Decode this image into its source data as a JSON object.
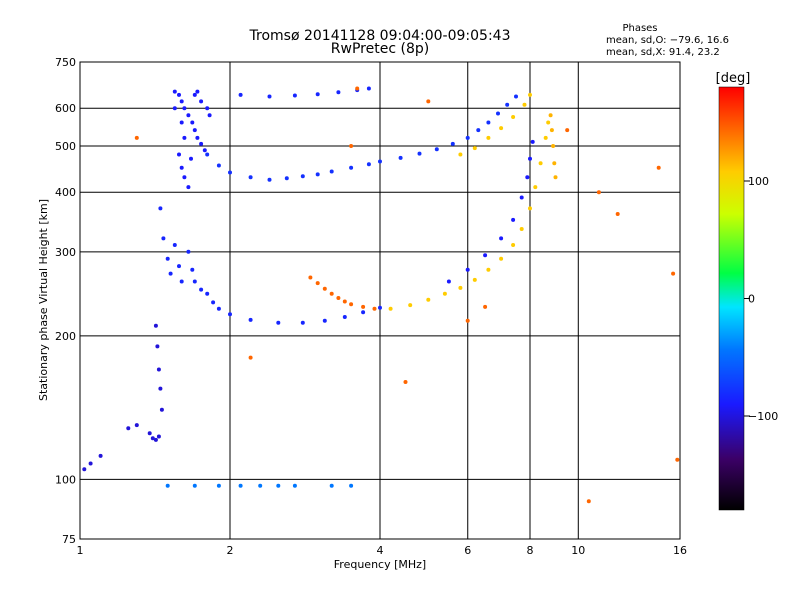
{
  "chart_data": {
    "type": "scatter",
    "title": "Tromsø 20141128 09:04:00-09:05:43",
    "subtitle": "RwPretec (8p)",
    "xlabel": "Frequency [MHz]",
    "ylabel": "Stationary phase Virtual Height [km]",
    "x_scale": "log",
    "y_scale": "log",
    "xlim": [
      1,
      16
    ],
    "ylim": [
      75,
      750
    ],
    "x_ticks": [
      1,
      2,
      4,
      6,
      8,
      10,
      16
    ],
    "x_tick_labels": [
      "1",
      "2",
      "4",
      "6",
      "8",
      "10",
      "16"
    ],
    "y_ticks": [
      75,
      100,
      200,
      300,
      400,
      500,
      600,
      750
    ],
    "y_tick_labels": [
      "75",
      "100",
      "200",
      "300",
      "400",
      "500",
      "600",
      "750"
    ],
    "grid": true,
    "phase_stats": {
      "header": "Phases",
      "o_line": "mean, sd,O: −79.6, 16.6",
      "x_line": "mean, sd,X:  91.4, 23.2"
    },
    "colorbar": {
      "label": "[deg]",
      "range": [
        -180,
        180
      ],
      "ticks": [
        100,
        0,
        -100
      ],
      "tick_labels": [
        "100",
        "0",
        "−100"
      ],
      "colors": [
        "#000000",
        "#3b0066",
        "#1a1aff",
        "#0077ff",
        "#00e5ff",
        "#00ff44",
        "#ccff00",
        "#ffcc00",
        "#ff6600",
        "#ff0000"
      ]
    },
    "series": [
      {
        "values": [
          [
            1.55,
            650
          ],
          [
            1.58,
            640
          ],
          [
            1.6,
            620
          ],
          [
            1.62,
            600
          ],
          [
            1.65,
            580
          ],
          [
            1.68,
            560
          ],
          [
            1.7,
            540
          ],
          [
            1.72,
            520
          ],
          [
            1.75,
            505
          ],
          [
            1.78,
            490
          ],
          [
            1.6,
            560
          ],
          [
            1.62,
            520
          ],
          [
            1.55,
            600
          ],
          [
            1.58,
            480
          ],
          [
            1.6,
            450
          ],
          [
            1.62,
            430
          ],
          [
            1.65,
            410
          ],
          [
            1.67,
            470
          ],
          [
            1.7,
            640
          ],
          [
            1.72,
            650
          ],
          [
            1.75,
            620
          ],
          [
            1.8,
            600
          ],
          [
            1.82,
            580
          ]
        ],
        "phase": -100
      },
      {
        "values": [
          [
            1.8,
            480
          ],
          [
            1.9,
            455
          ],
          [
            2.0,
            440
          ],
          [
            2.2,
            430
          ],
          [
            2.4,
            425
          ],
          [
            2.6,
            428
          ],
          [
            2.8,
            432
          ],
          [
            3.0,
            436
          ],
          [
            3.2,
            442
          ],
          [
            3.5,
            450
          ],
          [
            3.8,
            458
          ],
          [
            4.0,
            464
          ],
          [
            4.4,
            472
          ],
          [
            4.8,
            482
          ],
          [
            5.2,
            492
          ],
          [
            5.6,
            505
          ],
          [
            6.0,
            520
          ],
          [
            6.3,
            540
          ],
          [
            6.6,
            560
          ],
          [
            6.9,
            585
          ],
          [
            7.2,
            610
          ],
          [
            7.5,
            635
          ]
        ],
        "phase": -90
      },
      {
        "values": [
          [
            2.1,
            640
          ],
          [
            2.4,
            635
          ],
          [
            2.7,
            638
          ],
          [
            3.0,
            642
          ],
          [
            3.3,
            648
          ],
          [
            3.6,
            655
          ],
          [
            3.8,
            660
          ]
        ],
        "phase": -95
      },
      {
        "values": [
          [
            5.8,
            480
          ],
          [
            6.2,
            495
          ],
          [
            6.6,
            520
          ],
          [
            7.0,
            545
          ],
          [
            7.4,
            575
          ],
          [
            7.8,
            610
          ],
          [
            8.0,
            640
          ]
        ],
        "phase": 100
      },
      {
        "values": [
          [
            1.45,
            370
          ],
          [
            1.47,
            320
          ],
          [
            1.5,
            290
          ],
          [
            1.52,
            270
          ],
          [
            1.55,
            310
          ],
          [
            1.58,
            280
          ],
          [
            1.6,
            260
          ],
          [
            1.65,
            300
          ],
          [
            1.68,
            275
          ],
          [
            1.7,
            260
          ],
          [
            1.75,
            250
          ],
          [
            1.8,
            245
          ],
          [
            1.85,
            235
          ],
          [
            1.9,
            228
          ],
          [
            2.0,
            222
          ],
          [
            2.2,
            216
          ],
          [
            2.5,
            213
          ],
          [
            2.8,
            213
          ],
          [
            3.1,
            215
          ],
          [
            3.4,
            219
          ],
          [
            3.7,
            224
          ],
          [
            4.0,
            229
          ]
        ],
        "phase": -95
      },
      {
        "values": [
          [
            1.42,
            210
          ],
          [
            1.43,
            190
          ],
          [
            1.44,
            170
          ],
          [
            1.45,
            155
          ],
          [
            1.46,
            140
          ],
          [
            1.38,
            125
          ],
          [
            1.4,
            122
          ],
          [
            1.42,
            121
          ],
          [
            1.44,
            123
          ],
          [
            1.3,
            130
          ],
          [
            1.25,
            128
          ],
          [
            1.1,
            112
          ],
          [
            1.05,
            108
          ],
          [
            1.02,
            105
          ]
        ],
        "phase": -110
      },
      {
        "values": [
          [
            1.5,
            97
          ],
          [
            1.7,
            97
          ],
          [
            1.9,
            97
          ],
          [
            2.1,
            97
          ],
          [
            2.3,
            97
          ],
          [
            2.5,
            97
          ],
          [
            2.7,
            97
          ],
          [
            3.2,
            97
          ],
          [
            3.5,
            97
          ]
        ],
        "phase": -60
      },
      {
        "values": [
          [
            2.9,
            265
          ],
          [
            3.0,
            258
          ],
          [
            3.1,
            251
          ],
          [
            3.2,
            245
          ],
          [
            3.3,
            240
          ],
          [
            3.4,
            236
          ],
          [
            3.5,
            233
          ],
          [
            3.7,
            230
          ],
          [
            3.9,
            228
          ]
        ],
        "phase": 140
      },
      {
        "values": [
          [
            4.2,
            228
          ],
          [
            4.6,
            232
          ],
          [
            5.0,
            238
          ],
          [
            5.4,
            245
          ],
          [
            5.8,
            252
          ],
          [
            6.2,
            262
          ],
          [
            6.6,
            275
          ],
          [
            7.0,
            290
          ],
          [
            7.4,
            310
          ],
          [
            7.7,
            335
          ],
          [
            8.0,
            370
          ],
          [
            8.2,
            410
          ],
          [
            8.4,
            460
          ],
          [
            8.6,
            520
          ],
          [
            8.7,
            560
          ]
        ],
        "phase": 100
      },
      {
        "values": [
          [
            5.5,
            260
          ],
          [
            6.0,
            275
          ],
          [
            6.5,
            295
          ],
          [
            7.0,
            320
          ],
          [
            7.4,
            350
          ],
          [
            7.7,
            390
          ],
          [
            7.9,
            430
          ],
          [
            8.0,
            470
          ],
          [
            8.1,
            510
          ]
        ],
        "phase": -100
      },
      {
        "values": [
          [
            8.8,
            580
          ],
          [
            8.85,
            540
          ],
          [
            8.9,
            500
          ],
          [
            8.95,
            460
          ],
          [
            9.0,
            430
          ]
        ],
        "phase": 110
      },
      {
        "values": [
          [
            1.3,
            520
          ],
          [
            3.5,
            500
          ],
          [
            4.5,
            160
          ],
          [
            5.0,
            620
          ],
          [
            6.5,
            230
          ],
          [
            9.5,
            540
          ],
          [
            10.5,
            90
          ],
          [
            11.0,
            400
          ],
          [
            12.0,
            360
          ],
          [
            14.5,
            450
          ],
          [
            15.5,
            270
          ],
          [
            15.8,
            110
          ],
          [
            3.6,
            660
          ],
          [
            6.0,
            215
          ],
          [
            2.2,
            180
          ]
        ],
        "phase": 140
      }
    ]
  }
}
